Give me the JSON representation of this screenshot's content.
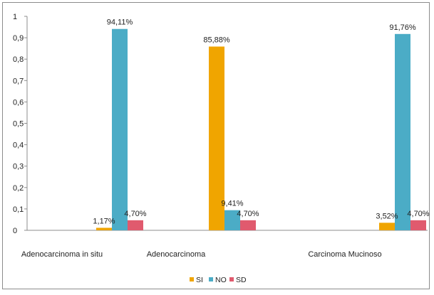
{
  "chart_data": {
    "type": "bar",
    "categories": [
      "Adenocarcinoma in situ",
      "Adenocarcinoma",
      "Carcinoma Mucinoso"
    ],
    "series": [
      {
        "name": "SI",
        "color": "#f0a500",
        "values": [
          0.0117,
          0.8588,
          0.0352
        ],
        "labels": [
          "1,17%",
          "85,88%",
          "3,52%"
        ]
      },
      {
        "name": "NO",
        "color": "#4bacc6",
        "values": [
          0.9411,
          0.0941,
          0.9176
        ],
        "labels": [
          "94,11%",
          "9,41%",
          "91,76%"
        ]
      },
      {
        "name": "SD",
        "color": "#e05a6e",
        "values": [
          0.047,
          0.047,
          0.047
        ],
        "labels": [
          "4,70%",
          "4,70%",
          "4,70%"
        ]
      }
    ],
    "ylim": [
      0,
      1
    ],
    "yticks": [
      0,
      0.1,
      0.2,
      0.3,
      0.4,
      0.5,
      0.6,
      0.7,
      0.8,
      0.9,
      1
    ],
    "ytick_labels": [
      "0",
      "0,1",
      "0,2",
      "0,3",
      "0,4",
      "0,5",
      "0,6",
      "0,7",
      "0,8",
      "0,9",
      "1"
    ],
    "grid": false,
    "legend_position": "bottom",
    "title": "",
    "xlabel": "",
    "ylabel": ""
  }
}
